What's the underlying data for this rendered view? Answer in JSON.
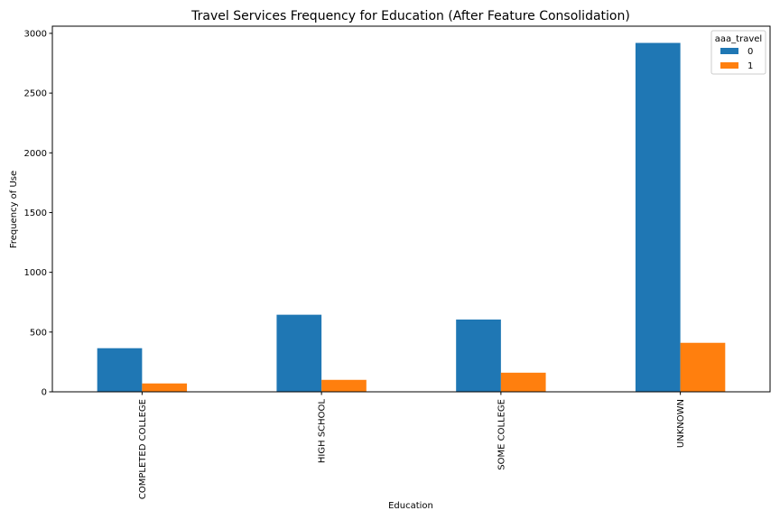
{
  "chart_data": {
    "type": "bar",
    "title": "Travel Services Frequency for Education  (After Feature Consolidation)",
    "xlabel": "Education",
    "ylabel": "Frequency of Use",
    "categories": [
      "COMPLETED COLLEGE",
      "HIGH SCHOOL",
      "SOME COLLEGE",
      "UNKNOWN"
    ],
    "series": [
      {
        "name": "0",
        "values": [
          365,
          645,
          605,
          2920
        ],
        "color": "#1f77b4"
      },
      {
        "name": "1",
        "values": [
          70,
          100,
          160,
          410
        ],
        "color": "#ff7f0e"
      }
    ],
    "ylim": [
      0,
      3060
    ],
    "yticks": [
      0,
      500,
      1000,
      1500,
      2000,
      2500,
      3000
    ],
    "ytick_labels": [
      "0",
      "500",
      "1000",
      "1500",
      "2000",
      "2500",
      "3000"
    ],
    "legend": {
      "title": "aaa_travel",
      "position": "top-right"
    },
    "grid": false
  }
}
